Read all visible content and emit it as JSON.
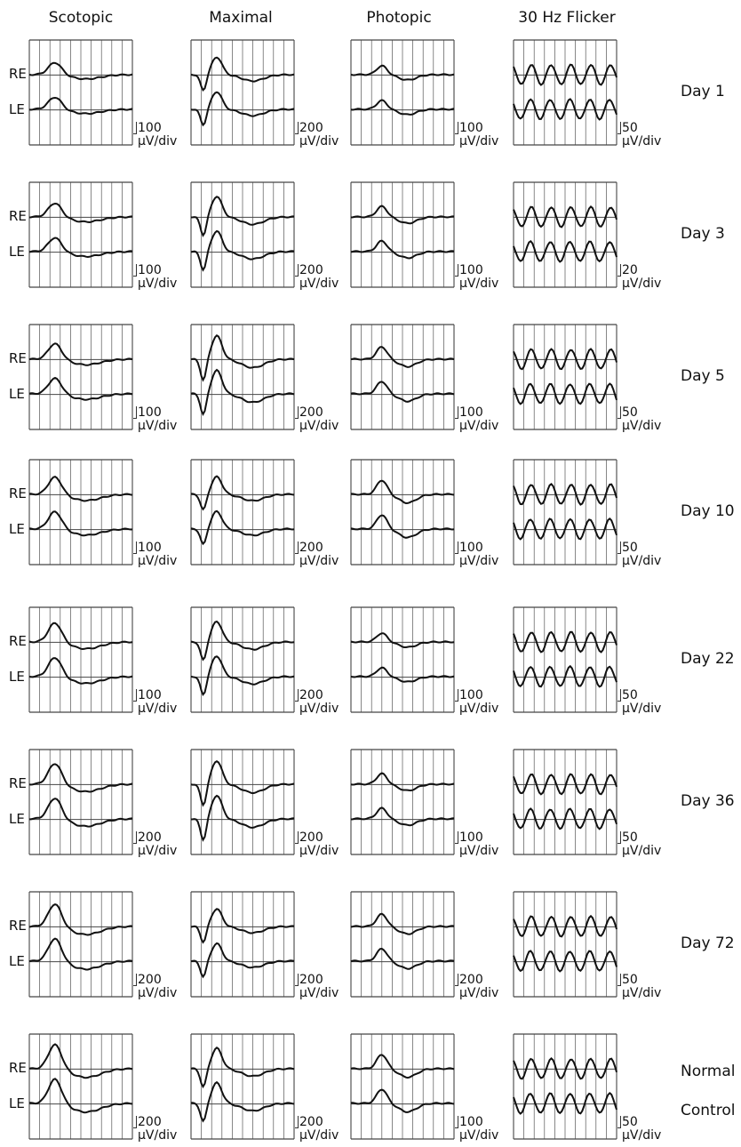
{
  "columns": [
    "Scotopic",
    "Maximal",
    "Photopic",
    "30 Hz Flicker"
  ],
  "eye_labels": [
    "RE",
    "LE"
  ],
  "scale_unit": "μV/div",
  "rows": [
    {
      "label": "Day 1",
      "scales": [
        "100",
        "200",
        "100",
        "50"
      ]
    },
    {
      "label": "Day 3",
      "scales": [
        "100",
        "200",
        "100",
        "20"
      ]
    },
    {
      "label": "Day 5",
      "scales": [
        "100",
        "200",
        "100",
        "50"
      ]
    },
    {
      "label": "Day 10",
      "scales": [
        "100",
        "200",
        "100",
        "50"
      ]
    },
    {
      "label": "Day 22",
      "scales": [
        "100",
        "200",
        "100",
        "50"
      ]
    },
    {
      "label": "Day 36",
      "scales": [
        "200",
        "200",
        "100",
        "50"
      ]
    },
    {
      "label": "Day 72",
      "scales": [
        "200",
        "200",
        "200",
        "50"
      ]
    },
    {
      "label": "Normal",
      "label2": "Control",
      "scales": [
        "200",
        "200",
        "100",
        "50"
      ]
    }
  ],
  "chart_data": {
    "type": "line",
    "title": "",
    "xlabel": "",
    "ylabel": "",
    "grid": true,
    "series": [
      {
        "name": "RE"
      },
      {
        "name": "LE"
      }
    ]
  }
}
